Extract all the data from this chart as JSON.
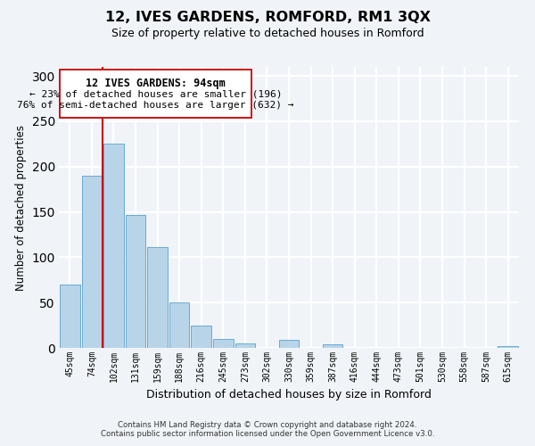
{
  "title": "12, IVES GARDENS, ROMFORD, RM1 3QX",
  "subtitle": "Size of property relative to detached houses in Romford",
  "xlabel": "Distribution of detached houses by size in Romford",
  "ylabel": "Number of detached properties",
  "bar_labels": [
    "45sqm",
    "74sqm",
    "102sqm",
    "131sqm",
    "159sqm",
    "188sqm",
    "216sqm",
    "245sqm",
    "273sqm",
    "302sqm",
    "330sqm",
    "359sqm",
    "387sqm",
    "416sqm",
    "444sqm",
    "473sqm",
    "501sqm",
    "530sqm",
    "558sqm",
    "587sqm",
    "615sqm"
  ],
  "bar_heights": [
    70,
    190,
    225,
    147,
    111,
    50,
    25,
    10,
    5,
    0,
    9,
    0,
    4,
    0,
    0,
    0,
    0,
    0,
    0,
    0,
    2
  ],
  "bar_color": "#b8d4e8",
  "bar_edge_color": "#6aaad4",
  "ylim": [
    0,
    310
  ],
  "yticks": [
    0,
    50,
    100,
    150,
    200,
    250,
    300
  ],
  "property_line_color": "#cc0000",
  "annotation_title": "12 IVES GARDENS: 94sqm",
  "annotation_line1": "← 23% of detached houses are smaller (196)",
  "annotation_line2": "76% of semi-detached houses are larger (632) →",
  "footer_line1": "Contains HM Land Registry data © Crown copyright and database right 2024.",
  "footer_line2": "Contains public sector information licensed under the Open Government Licence v3.0.",
  "background_color": "#f0f4f8",
  "grid_color": "#ffffff"
}
